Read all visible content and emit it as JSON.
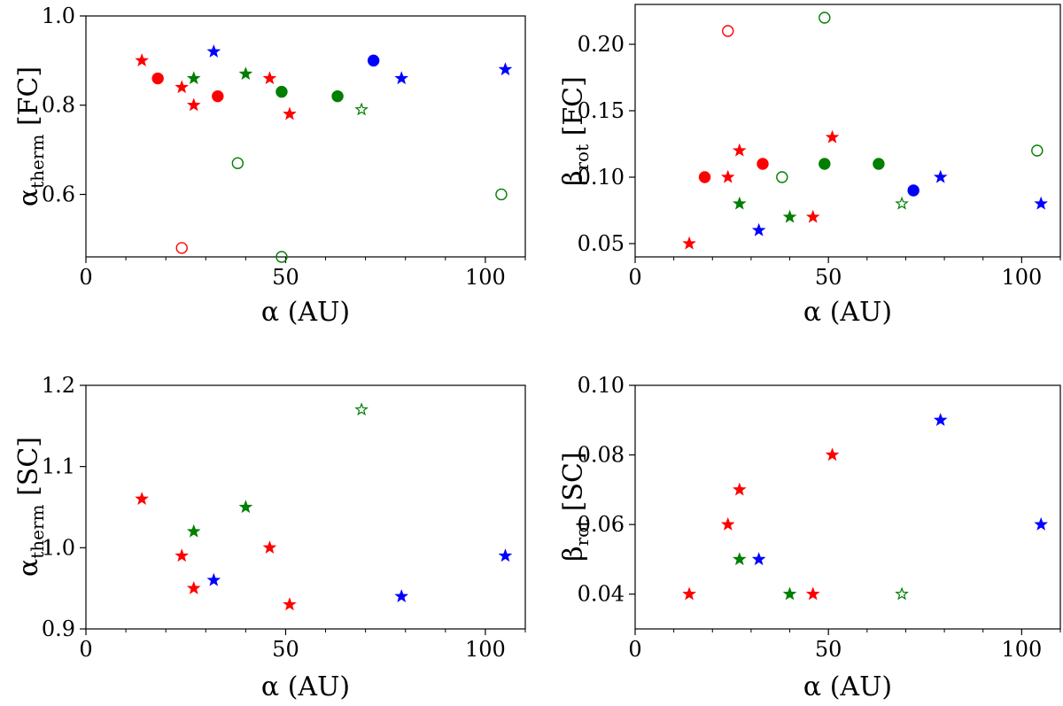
{
  "figure": {
    "panels": [
      {
        "id": "p1",
        "ylabel_main": "α",
        "ylabel_sub": "therm",
        "ylabel_tail": " [FC]",
        "xlabel": "α (AU)"
      },
      {
        "id": "p2",
        "ylabel_main": "β",
        "ylabel_sub": "rot",
        "ylabel_tail": " [FC]",
        "xlabel": "α (AU)"
      },
      {
        "id": "p3",
        "ylabel_main": "α",
        "ylabel_sub": "therm",
        "ylabel_tail": " [SC]",
        "xlabel": "α (AU)"
      },
      {
        "id": "p4",
        "ylabel_main": "β",
        "ylabel_sub": "rot",
        "ylabel_tail": " [SC]",
        "xlabel": "α (AU)"
      }
    ]
  },
  "colors": {
    "red": "#ff0000",
    "green": "#007f00",
    "blue": "#0000ff"
  },
  "chart_data": [
    {
      "type": "scatter",
      "title": "",
      "xlabel": "α (AU)",
      "ylabel": "α_therm [FC]",
      "xlim": [
        0,
        110
      ],
      "ylim": [
        0.46,
        1.0
      ],
      "xticks": [
        0,
        50,
        100
      ],
      "xtick_labels": [
        "0",
        "50",
        "100"
      ],
      "yticks": [
        0.6,
        0.8,
        1.0
      ],
      "ytick_labels": [
        "0.6",
        "0.8",
        "1.0"
      ],
      "grid": false,
      "points": [
        {
          "x": 14,
          "y": 0.9,
          "color": "red",
          "marker": "star",
          "filled": true
        },
        {
          "x": 18,
          "y": 0.86,
          "color": "red",
          "marker": "circle",
          "filled": true
        },
        {
          "x": 24,
          "y": 0.84,
          "color": "red",
          "marker": "star",
          "filled": true
        },
        {
          "x": 24,
          "y": 0.48,
          "color": "red",
          "marker": "circle",
          "filled": false
        },
        {
          "x": 27,
          "y": 0.86,
          "color": "green",
          "marker": "star",
          "filled": true
        },
        {
          "x": 27,
          "y": 0.8,
          "color": "red",
          "marker": "star",
          "filled": true
        },
        {
          "x": 32,
          "y": 0.92,
          "color": "blue",
          "marker": "star",
          "filled": true
        },
        {
          "x": 33,
          "y": 0.82,
          "color": "red",
          "marker": "circle",
          "filled": true
        },
        {
          "x": 38,
          "y": 0.67,
          "color": "green",
          "marker": "circle",
          "filled": false
        },
        {
          "x": 40,
          "y": 0.87,
          "color": "green",
          "marker": "star",
          "filled": true
        },
        {
          "x": 46,
          "y": 0.86,
          "color": "red",
          "marker": "star",
          "filled": true
        },
        {
          "x": 49,
          "y": 0.83,
          "color": "green",
          "marker": "circle",
          "filled": true
        },
        {
          "x": 49,
          "y": 0.46,
          "color": "green",
          "marker": "circle",
          "filled": false
        },
        {
          "x": 51,
          "y": 0.78,
          "color": "red",
          "marker": "star",
          "filled": true
        },
        {
          "x": 63,
          "y": 0.82,
          "color": "green",
          "marker": "circle",
          "filled": true
        },
        {
          "x": 69,
          "y": 0.79,
          "color": "green",
          "marker": "star",
          "filled": false
        },
        {
          "x": 72,
          "y": 0.9,
          "color": "blue",
          "marker": "circle",
          "filled": true
        },
        {
          "x": 79,
          "y": 0.86,
          "color": "blue",
          "marker": "star",
          "filled": true
        },
        {
          "x": 104,
          "y": 0.6,
          "color": "green",
          "marker": "circle",
          "filled": false
        },
        {
          "x": 105,
          "y": 0.88,
          "color": "blue",
          "marker": "star",
          "filled": true
        }
      ]
    },
    {
      "type": "scatter",
      "title": "",
      "xlabel": "α (AU)",
      "ylabel": "β_rot [FC]",
      "xlim": [
        0,
        110
      ],
      "ylim": [
        0.04,
        0.23
      ],
      "xticks": [
        0,
        50,
        100
      ],
      "xtick_labels": [
        "0",
        "50",
        "100"
      ],
      "yticks": [
        0.05,
        0.1,
        0.15,
        0.2
      ],
      "ytick_labels": [
        "0.05",
        "0.10",
        "0.15",
        "0.20"
      ],
      "grid": false,
      "points": [
        {
          "x": 14,
          "y": 0.05,
          "color": "red",
          "marker": "star",
          "filled": true
        },
        {
          "x": 18,
          "y": 0.1,
          "color": "red",
          "marker": "circle",
          "filled": true
        },
        {
          "x": 24,
          "y": 0.1,
          "color": "red",
          "marker": "star",
          "filled": true
        },
        {
          "x": 24,
          "y": 0.21,
          "color": "red",
          "marker": "circle",
          "filled": false
        },
        {
          "x": 27,
          "y": 0.12,
          "color": "red",
          "marker": "star",
          "filled": true
        },
        {
          "x": 27,
          "y": 0.08,
          "color": "green",
          "marker": "star",
          "filled": true
        },
        {
          "x": 32,
          "y": 0.06,
          "color": "blue",
          "marker": "star",
          "filled": true
        },
        {
          "x": 33,
          "y": 0.11,
          "color": "red",
          "marker": "circle",
          "filled": true
        },
        {
          "x": 38,
          "y": 0.1,
          "color": "green",
          "marker": "circle",
          "filled": false
        },
        {
          "x": 40,
          "y": 0.07,
          "color": "green",
          "marker": "star",
          "filled": true
        },
        {
          "x": 46,
          "y": 0.07,
          "color": "red",
          "marker": "star",
          "filled": true
        },
        {
          "x": 49,
          "y": 0.11,
          "color": "green",
          "marker": "circle",
          "filled": true
        },
        {
          "x": 49,
          "y": 0.22,
          "color": "green",
          "marker": "circle",
          "filled": false
        },
        {
          "x": 51,
          "y": 0.13,
          "color": "red",
          "marker": "star",
          "filled": true
        },
        {
          "x": 63,
          "y": 0.11,
          "color": "green",
          "marker": "circle",
          "filled": true
        },
        {
          "x": 69,
          "y": 0.08,
          "color": "green",
          "marker": "star",
          "filled": false
        },
        {
          "x": 72,
          "y": 0.09,
          "color": "blue",
          "marker": "circle",
          "filled": true
        },
        {
          "x": 79,
          "y": 0.1,
          "color": "blue",
          "marker": "star",
          "filled": true
        },
        {
          "x": 104,
          "y": 0.12,
          "color": "green",
          "marker": "circle",
          "filled": false
        },
        {
          "x": 105,
          "y": 0.08,
          "color": "blue",
          "marker": "star",
          "filled": true
        }
      ]
    },
    {
      "type": "scatter",
      "title": "",
      "xlabel": "α (AU)",
      "ylabel": "α_therm [SC]",
      "xlim": [
        0,
        110
      ],
      "ylim": [
        0.9,
        1.2
      ],
      "xticks": [
        0,
        50,
        100
      ],
      "xtick_labels": [
        "0",
        "50",
        "100"
      ],
      "yticks": [
        0.9,
        1.0,
        1.1,
        1.2
      ],
      "ytick_labels": [
        "0.9",
        "1.0",
        "1.1",
        "1.2"
      ],
      "grid": false,
      "points": [
        {
          "x": 14,
          "y": 1.06,
          "color": "red",
          "marker": "star",
          "filled": true
        },
        {
          "x": 24,
          "y": 0.99,
          "color": "red",
          "marker": "star",
          "filled": true
        },
        {
          "x": 27,
          "y": 1.02,
          "color": "green",
          "marker": "star",
          "filled": true
        },
        {
          "x": 27,
          "y": 0.95,
          "color": "red",
          "marker": "star",
          "filled": true
        },
        {
          "x": 32,
          "y": 0.96,
          "color": "blue",
          "marker": "star",
          "filled": true
        },
        {
          "x": 40,
          "y": 1.05,
          "color": "green",
          "marker": "star",
          "filled": true
        },
        {
          "x": 46,
          "y": 1.0,
          "color": "red",
          "marker": "star",
          "filled": true
        },
        {
          "x": 51,
          "y": 0.93,
          "color": "red",
          "marker": "star",
          "filled": true
        },
        {
          "x": 69,
          "y": 1.17,
          "color": "green",
          "marker": "star",
          "filled": false
        },
        {
          "x": 79,
          "y": 0.94,
          "color": "blue",
          "marker": "star",
          "filled": true
        },
        {
          "x": 105,
          "y": 0.99,
          "color": "blue",
          "marker": "star",
          "filled": true
        }
      ]
    },
    {
      "type": "scatter",
      "title": "",
      "xlabel": "α (AU)",
      "ylabel": "β_rot [SC]",
      "xlim": [
        0,
        110
      ],
      "ylim": [
        0.03,
        0.1
      ],
      "xticks": [
        0,
        50,
        100
      ],
      "xtick_labels": [
        "0",
        "50",
        "100"
      ],
      "yticks": [
        0.04,
        0.06,
        0.08,
        0.1
      ],
      "ytick_labels": [
        "0.04",
        "0.06",
        "0.08",
        "0.10"
      ],
      "grid": false,
      "points": [
        {
          "x": 14,
          "y": 0.04,
          "color": "red",
          "marker": "star",
          "filled": true
        },
        {
          "x": 24,
          "y": 0.06,
          "color": "red",
          "marker": "star",
          "filled": true
        },
        {
          "x": 27,
          "y": 0.07,
          "color": "red",
          "marker": "star",
          "filled": true
        },
        {
          "x": 27,
          "y": 0.05,
          "color": "green",
          "marker": "star",
          "filled": true
        },
        {
          "x": 32,
          "y": 0.05,
          "color": "blue",
          "marker": "star",
          "filled": true
        },
        {
          "x": 40,
          "y": 0.04,
          "color": "green",
          "marker": "star",
          "filled": true
        },
        {
          "x": 46,
          "y": 0.04,
          "color": "red",
          "marker": "star",
          "filled": true
        },
        {
          "x": 51,
          "y": 0.08,
          "color": "red",
          "marker": "star",
          "filled": true
        },
        {
          "x": 69,
          "y": 0.04,
          "color": "green",
          "marker": "star",
          "filled": false
        },
        {
          "x": 79,
          "y": 0.09,
          "color": "blue",
          "marker": "star",
          "filled": true
        },
        {
          "x": 105,
          "y": 0.06,
          "color": "blue",
          "marker": "star",
          "filled": true
        }
      ]
    }
  ]
}
